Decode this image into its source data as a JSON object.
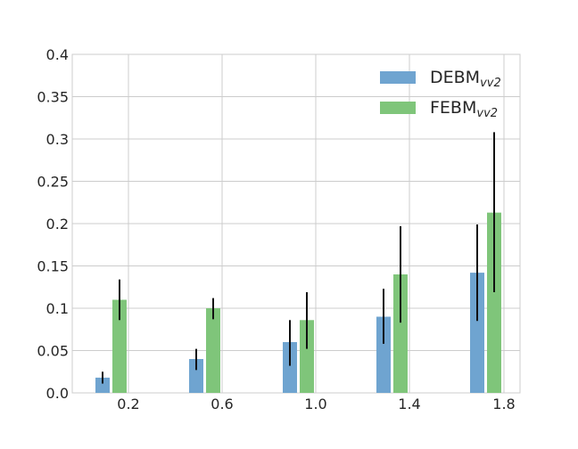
{
  "chart_data": {
    "type": "bar",
    "x_tick_labels": [
      "0.2",
      "0.6",
      "1.0",
      "1.4",
      "1.8"
    ],
    "y_tick_labels": [
      "0.0",
      "0.05",
      "0.1",
      "0.15",
      "0.2",
      "0.25",
      "0.3",
      "0.35",
      "0.4"
    ],
    "ylim": [
      0,
      0.4
    ],
    "grid": true,
    "legend_position": "top-right",
    "series": [
      {
        "name_base": "DEBM",
        "name_sub": "vv2",
        "color": "#6fa4d0",
        "values": [
          0.018,
          0.04,
          0.06,
          0.09,
          0.142
        ],
        "err_low": [
          0.011,
          0.027,
          0.032,
          0.058,
          0.085
        ],
        "err_high": [
          0.025,
          0.052,
          0.086,
          0.123,
          0.199
        ]
      },
      {
        "name_base": "FEBM",
        "name_sub": "vv2",
        "color": "#7fc57a",
        "values": [
          0.11,
          0.1,
          0.086,
          0.14,
          0.213
        ],
        "err_low": [
          0.086,
          0.087,
          0.052,
          0.083,
          0.119
        ],
        "err_high": [
          0.134,
          0.112,
          0.119,
          0.197,
          0.308
        ]
      }
    ]
  }
}
